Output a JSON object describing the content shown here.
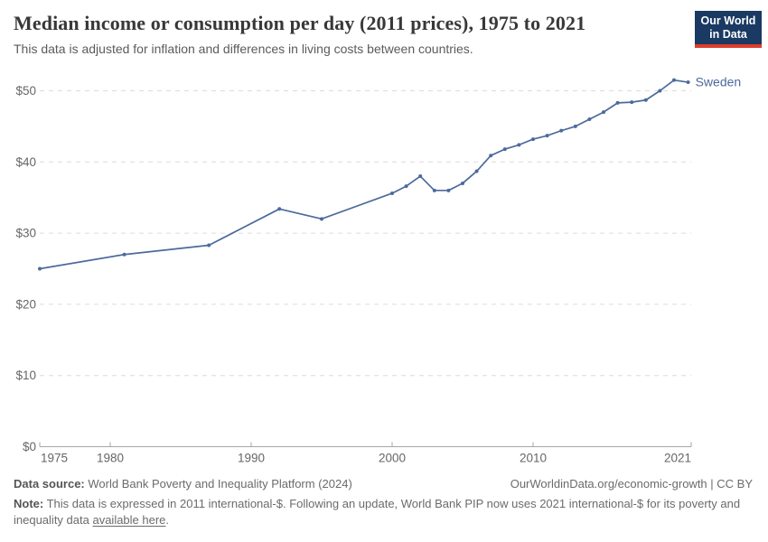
{
  "header": {
    "title": "Median income or consumption per day (2011 prices), 1975 to 2021",
    "subtitle": "This data is adjusted for inflation and differences in living costs between countries.",
    "logo": {
      "line1": "Our World",
      "line2": "in Data"
    }
  },
  "chart_data": {
    "type": "line",
    "title": "Median income or consumption per day (2011 prices), 1975 to 2021",
    "xlabel": "",
    "ylabel": "",
    "xlim": [
      1975,
      2021
    ],
    "ylim": [
      0,
      55
    ],
    "x_ticks": [
      1975,
      1980,
      1990,
      2000,
      2010,
      2021
    ],
    "y_ticks": [
      0,
      10,
      20,
      30,
      40,
      50
    ],
    "y_prefix": "$",
    "grid": "horizontal-dashed",
    "legend_position": "end-of-line-label",
    "series": [
      {
        "name": "Sweden",
        "color": "#4C6A9C",
        "points": [
          [
            1975,
            25.0
          ],
          [
            1981,
            27.0
          ],
          [
            1987,
            28.3
          ],
          [
            1992,
            33.4
          ],
          [
            1995,
            32.0
          ],
          [
            2000,
            35.6
          ],
          [
            2001,
            36.6
          ],
          [
            2002,
            38.0
          ],
          [
            2003,
            36.0
          ],
          [
            2004,
            36.0
          ],
          [
            2005,
            37.0
          ],
          [
            2006,
            38.7
          ],
          [
            2007,
            40.9
          ],
          [
            2008,
            41.8
          ],
          [
            2009,
            42.4
          ],
          [
            2010,
            43.2
          ],
          [
            2011,
            43.7
          ],
          [
            2012,
            44.4
          ],
          [
            2013,
            45.0
          ],
          [
            2014,
            46.0
          ],
          [
            2015,
            47.0
          ],
          [
            2016,
            48.3
          ],
          [
            2017,
            48.4
          ],
          [
            2018,
            48.7
          ],
          [
            2019,
            50.0
          ],
          [
            2020,
            51.5
          ],
          [
            2021,
            51.2
          ]
        ]
      }
    ]
  },
  "footer": {
    "source_label": "Data source:",
    "source_text": "World Bank Poverty and Inequality Platform (2024)",
    "credit": "OurWorldinData.org/economic-growth | CC BY",
    "note_label": "Note:",
    "note_text": "This data is expressed in 2011 international-$. Following an update, World Bank PIP now uses 2021 international-$ for its poverty and inequality data",
    "note_link": "available here",
    "note_suffix": "."
  },
  "colors": {
    "accent": "#4C6A9C",
    "logo_bg": "#1a3a63",
    "logo_red": "#dc3c2c"
  }
}
